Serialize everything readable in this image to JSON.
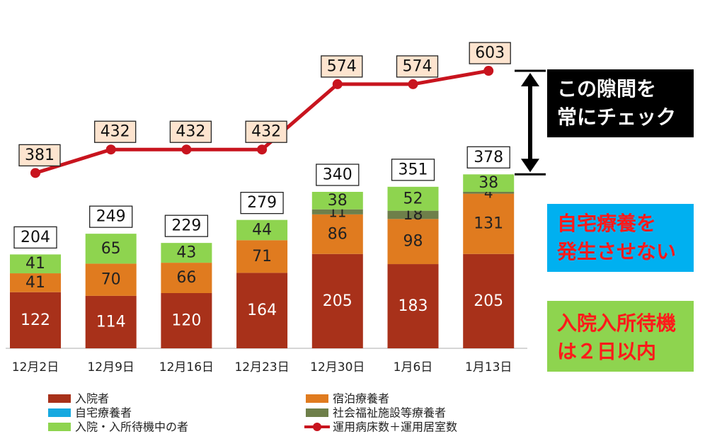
{
  "chart_data": {
    "type": "bar",
    "categories": [
      "12月2日",
      "12月9日",
      "12月16日",
      "12月23日",
      "12月30日",
      "1月6日",
      "1月13日"
    ],
    "stacked": true,
    "series": [
      {
        "name": "入院者",
        "color": "#a8311a",
        "values": [
          122,
          114,
          120,
          164,
          205,
          183,
          205
        ]
      },
      {
        "name": "宿泊療養者",
        "color": "#e07b1f",
        "values": [
          41,
          70,
          66,
          71,
          86,
          98,
          131
        ]
      },
      {
        "name": "自宅療養者",
        "color": "#16a9e0",
        "values": [
          0,
          0,
          0,
          0,
          0,
          0,
          0
        ]
      },
      {
        "name": "社会福祉施設等療養者",
        "color": "#6e7f4a",
        "values": [
          0,
          0,
          0,
          0,
          11,
          18,
          4
        ]
      },
      {
        "name": "入院・入所待機中の者",
        "color": "#8ed44f",
        "values": [
          41,
          65,
          43,
          44,
          38,
          52,
          38
        ]
      }
    ],
    "totals": [
      204,
      249,
      229,
      279,
      340,
      351,
      378
    ],
    "line": {
      "name": "運用病床数＋運用居室数",
      "color": "#c8141e",
      "values": [
        381,
        432,
        432,
        432,
        574,
        574,
        603
      ]
    },
    "ylim": [
      0,
      800
    ],
    "grid": false,
    "legend": [
      {
        "label": "入院者",
        "color": "#a8311a",
        "kind": "bar"
      },
      {
        "label": "宿泊療養者",
        "color": "#e07b1f",
        "kind": "bar"
      },
      {
        "label": "自宅療養者",
        "color": "#16a9e0",
        "kind": "bar"
      },
      {
        "label": "社会福祉施設等療養者",
        "color": "#6e7f4a",
        "kind": "bar"
      },
      {
        "label": "入院・入所待機中の者",
        "color": "#8ed44f",
        "kind": "bar"
      },
      {
        "label": "運用病床数＋運用居室数",
        "color": "#c8141e",
        "kind": "line"
      }
    ]
  },
  "annotations": {
    "gap_note": [
      "この隙間を",
      "常にチェック"
    ],
    "home_note": [
      "自宅療養を",
      "発生させない"
    ],
    "wait_note": [
      "入院入所待機",
      "は２日以内"
    ]
  }
}
